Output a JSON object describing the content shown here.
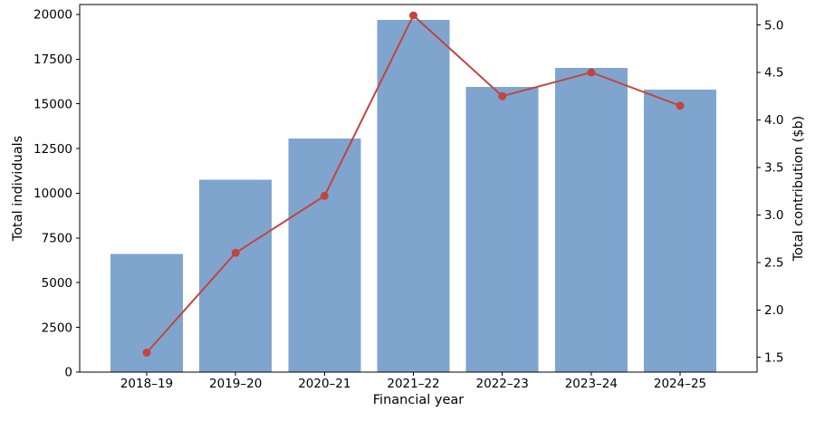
{
  "chart_data": {
    "type": "bar",
    "subtype": "combo-bar-line-dual-axis",
    "title": "",
    "categories": [
      "2018–19",
      "2019–20",
      "2020–21",
      "2021–22",
      "2022–23",
      "2023–24",
      "2024–25"
    ],
    "series": [
      {
        "name": "Total individuals",
        "chart": "bar",
        "axis": "left",
        "color": "#7fa5ce",
        "values": [
          6600,
          10750,
          13050,
          19700,
          15950,
          17000,
          15800
        ]
      },
      {
        "name": "Total contribution ($b)",
        "chart": "line",
        "axis": "right",
        "color": "#c2453f",
        "marker": "circle",
        "values": [
          1.55,
          2.6,
          3.2,
          5.1,
          4.25,
          4.5,
          4.15
        ]
      }
    ],
    "xlabel": "Financial year",
    "ylabel_left": "Total individuals",
    "ylabel_right": "Total contribution ($b)",
    "ytick_labels_left": [
      "0",
      "2500",
      "5000",
      "7500",
      "10000",
      "12500",
      "15000",
      "17500",
      "20000"
    ],
    "ytick_labels_right": [
      "1.5",
      "2.0",
      "2.5",
      "3.0",
      "3.5",
      "4.0",
      "4.5",
      "5.0"
    ],
    "ylim_left": [
      0,
      20550
    ],
    "ylim_right": [
      1.345,
      5.215
    ],
    "grid": false,
    "legend_position": "none",
    "background": "#ffffff",
    "axis_color": "#000000",
    "text_color": "#000000"
  }
}
